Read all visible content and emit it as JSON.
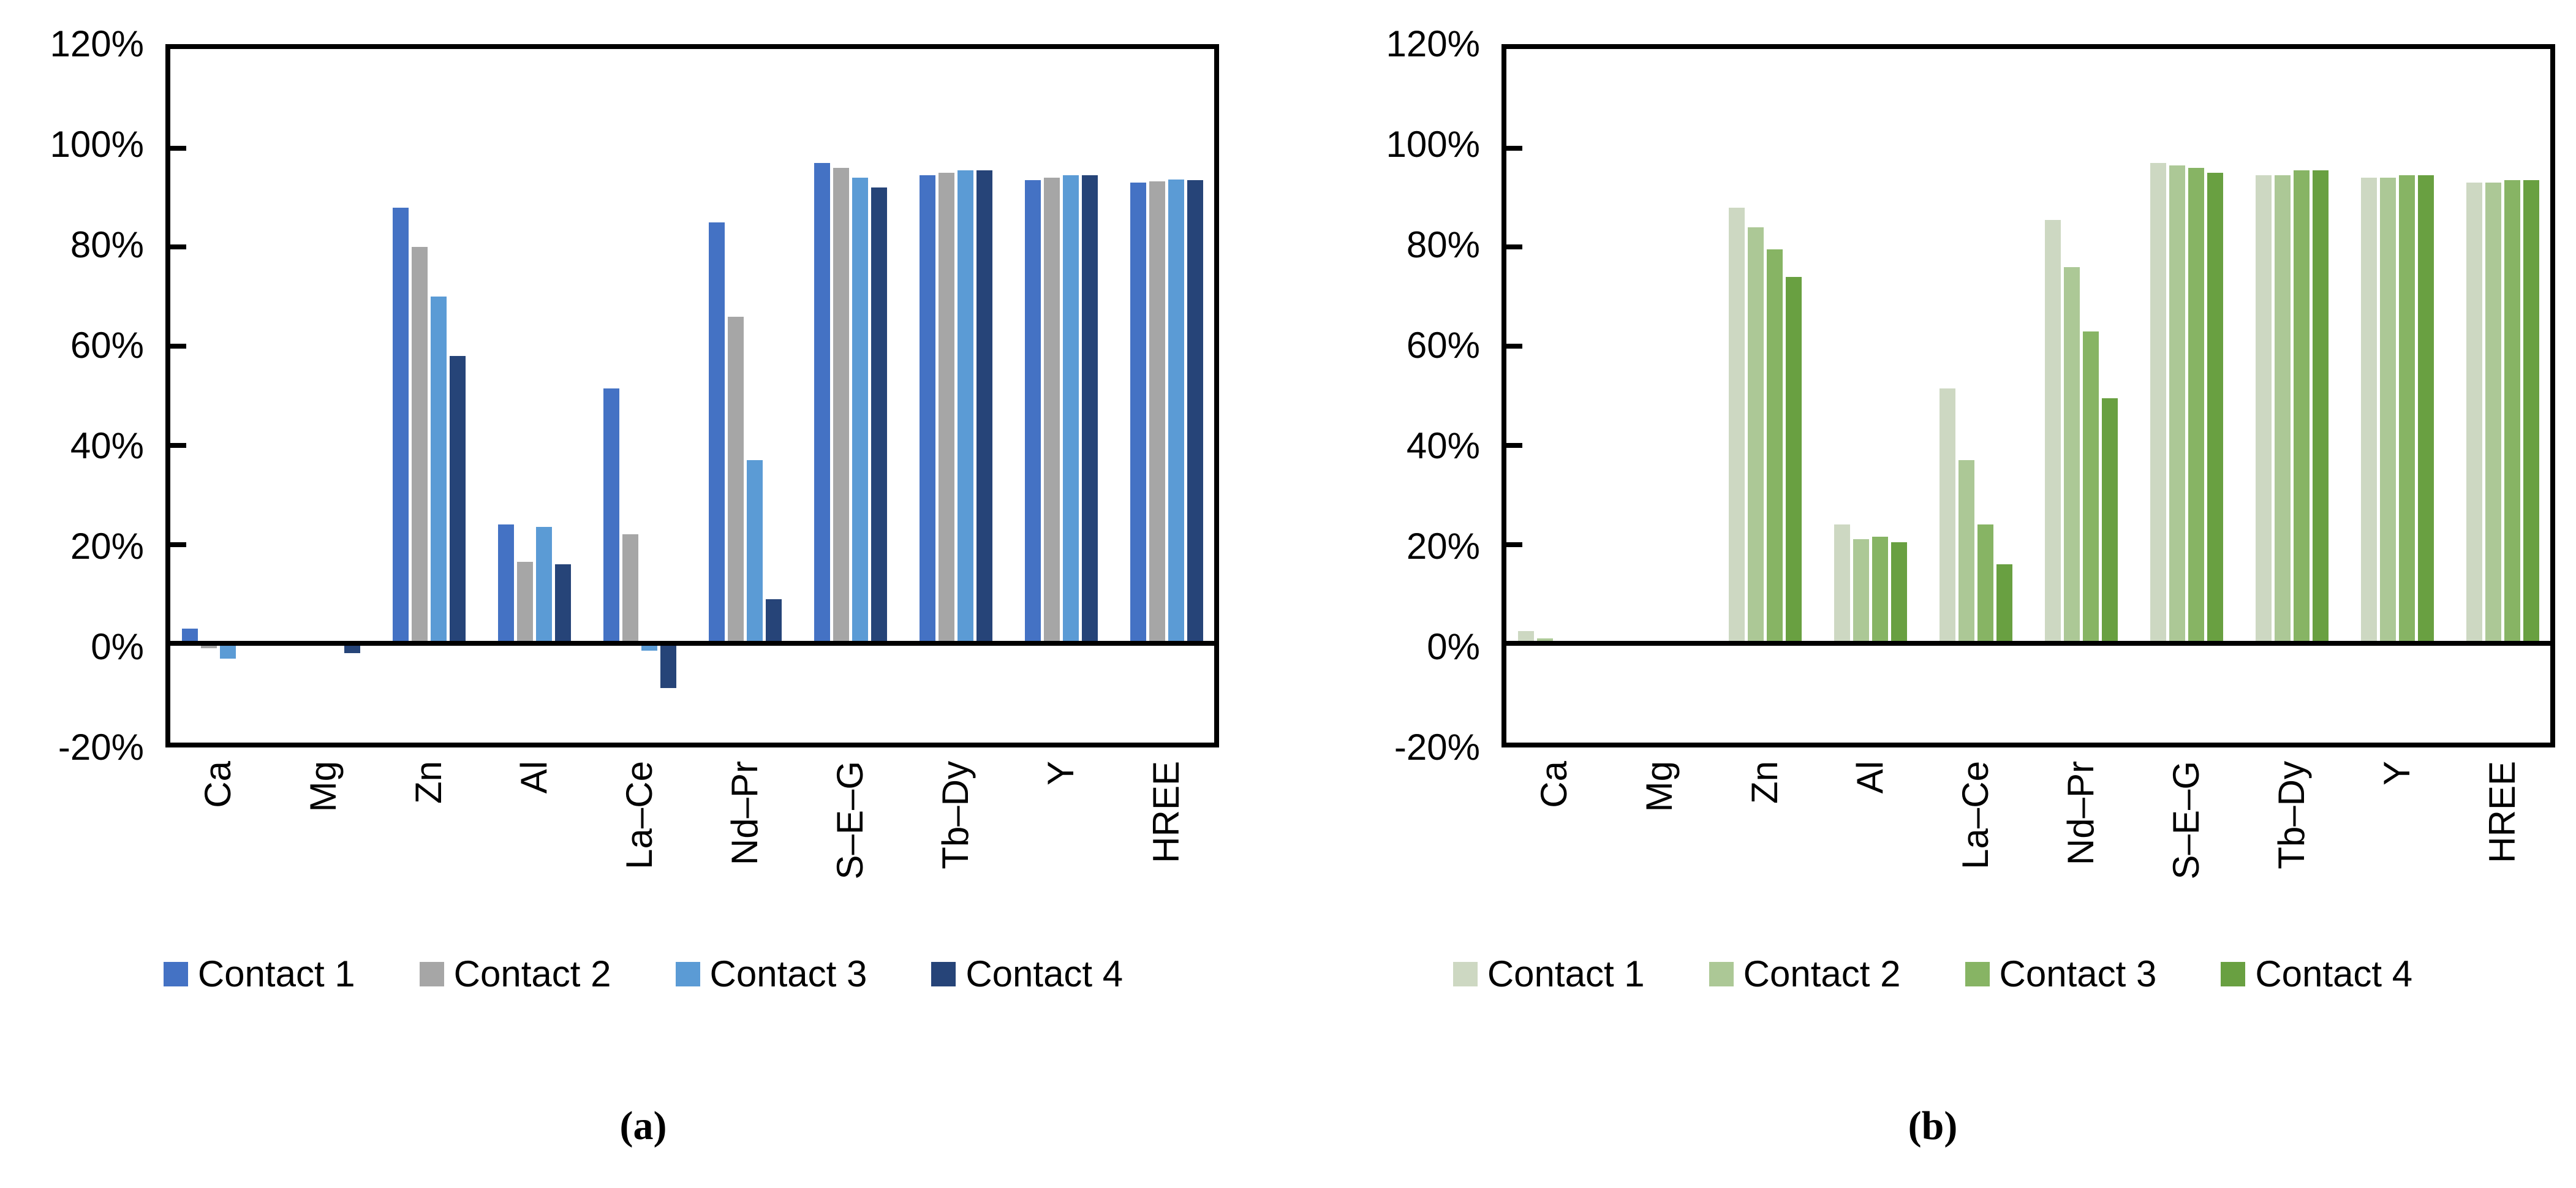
{
  "figure": {
    "captions": {
      "a": "(a)",
      "b": "(b)"
    }
  },
  "axis": {
    "tick_labels": [
      "120%",
      "100%",
      "80%",
      "60%",
      "40%",
      "20%",
      "0%",
      "-20%"
    ],
    "tick_values": [
      120,
      100,
      80,
      60,
      40,
      20,
      0,
      -20
    ],
    "ylim": [
      -20,
      120
    ]
  },
  "chart_data": [
    {
      "id": "a",
      "type": "bar",
      "title": "",
      "xlabel": "",
      "ylabel": "",
      "ylim": [
        -20,
        120
      ],
      "grid": false,
      "legend_position": "bottom",
      "categories": [
        "Ca",
        "Mg",
        "Zn",
        "Al",
        "La–Ce",
        "Nd–Pr",
        "S–E–G",
        "Tb–Dy",
        "Y",
        "HREE"
      ],
      "series": [
        {
          "name": "Contact 1",
          "color": "#4472C4",
          "values": [
            3,
            0,
            88,
            24,
            51.5,
            85,
            97,
            94.5,
            93.5,
            93
          ]
        },
        {
          "name": "Contact 2",
          "color": "#A6A6A6",
          "values": [
            -1,
            0,
            80,
            16.5,
            22,
            66,
            96,
            95,
            94,
            93.3
          ]
        },
        {
          "name": "Contact 3",
          "color": "#5B9BD5",
          "values": [
            -3,
            0,
            70,
            23.5,
            -1.5,
            37,
            94,
            95.5,
            94.5,
            93.7
          ]
        },
        {
          "name": "Contact 4",
          "color": "#264478",
          "values": [
            0,
            -2,
            58,
            16,
            -9,
            9,
            92,
            95.5,
            94.5,
            93.5
          ]
        }
      ]
    },
    {
      "id": "b",
      "type": "bar",
      "title": "",
      "xlabel": "",
      "ylabel": "",
      "ylim": [
        -20,
        120
      ],
      "grid": false,
      "legend_position": "bottom",
      "categories": [
        "Ca",
        "Mg",
        "Zn",
        "Al",
        "La–Ce",
        "Nd–Pr",
        "S–E–G",
        "Tb–Dy",
        "Y",
        "HREE"
      ],
      "series": [
        {
          "name": "Contact 1",
          "color": "#CDD8C2",
          "values": [
            2.5,
            0,
            88,
            24,
            51.5,
            85.5,
            97,
            94.5,
            94,
            93
          ]
        },
        {
          "name": "Contact 2",
          "color": "#ACC896",
          "values": [
            1,
            0,
            84,
            21,
            37,
            76,
            96.5,
            94.5,
            94,
            93
          ]
        },
        {
          "name": "Contact 3",
          "color": "#87B464",
          "values": [
            0,
            0,
            79.5,
            21.5,
            24,
            63,
            96,
            95.5,
            94.5,
            93.5
          ]
        },
        {
          "name": "Contact 4",
          "color": "#69A041",
          "values": [
            0,
            0,
            74,
            20.5,
            16,
            49.5,
            95,
            95.5,
            94.5,
            93.5
          ]
        }
      ]
    }
  ]
}
